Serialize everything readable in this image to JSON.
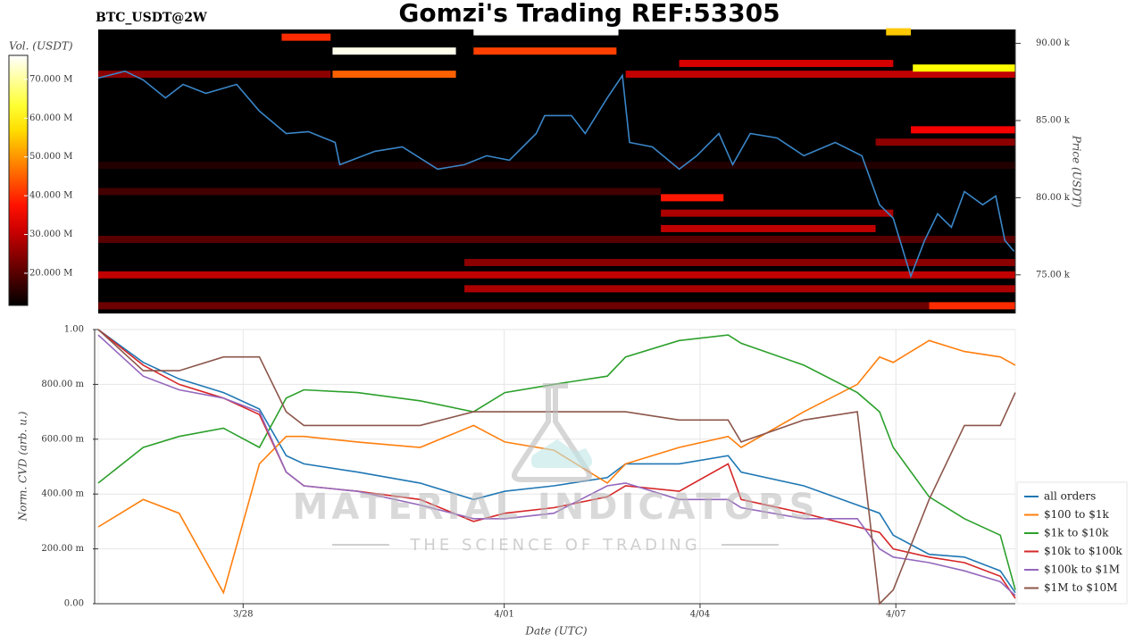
{
  "chart_data": [
    {
      "type": "heatmap",
      "title": "Gomzi's Trading REF:53305",
      "subtitle": "BTC_USDT@2W",
      "ylabel": "Price (USDT)",
      "colorbar_label": "Vol. (USDT)",
      "colormap": "hot",
      "xlim": [
        -2.22,
        11.83
      ],
      "ylim": [
        72500,
        90900
      ],
      "yticks": [
        {
          "value": 75000,
          "label": "75.00 k"
        },
        {
          "value": 80000,
          "label": "80.00 k"
        },
        {
          "value": 85000,
          "label": "85.00 k"
        },
        {
          "value": 90000,
          "label": "90.00 k"
        }
      ],
      "clim": [
        11700000,
        76200000
      ],
      "cticks": [
        {
          "value": 20000000,
          "label": "20.000 M"
        },
        {
          "value": 30000000,
          "label": "30.000 M"
        },
        {
          "value": 40000000,
          "label": "40.000 M"
        },
        {
          "value": 50000000,
          "label": "50.000 M"
        },
        {
          "value": 60000000,
          "label": "60.000 M"
        },
        {
          "value": 70000000,
          "label": "70.000 M"
        }
      ],
      "cells": [
        {
          "price": 82100,
          "x": [
            -2.22,
            11.83
          ],
          "volume": 15000000
        },
        {
          "price": 80400,
          "x": [
            -2.22,
            6.4
          ],
          "volume": 18000000
        },
        {
          "price": 77300,
          "x": [
            -2.22,
            11.83
          ],
          "volume": 20000000
        },
        {
          "price": 73000,
          "x": [
            -2.22,
            10.51
          ],
          "volume": 22000000
        },
        {
          "price": 88000,
          "x": [
            -2.22,
            1.34
          ],
          "volume": 25000000
        },
        {
          "price": 88000,
          "x": [
            5.86,
            11.83
          ],
          "volume": 30000000
        },
        {
          "price": 75800,
          "x": [
            3.39,
            11.83
          ],
          "volume": 25000000
        },
        {
          "price": 75000,
          "x": [
            -2.22,
            11.83
          ],
          "volume": 30000000
        },
        {
          "price": 74100,
          "x": [
            3.39,
            11.83
          ],
          "volume": 28000000
        },
        {
          "price": 83600,
          "x": [
            9.69,
            11.83
          ],
          "volume": 25000000
        },
        {
          "price": 79000,
          "x": [
            6.4,
            9.96
          ],
          "volume": 28000000
        },
        {
          "price": 78000,
          "x": [
            6.4,
            9.69
          ],
          "volume": 30000000
        },
        {
          "price": 88700,
          "x": [
            6.68,
            9.96
          ],
          "volume": 32000000
        },
        {
          "price": 84400,
          "x": [
            10.23,
            11.83
          ],
          "volume": 35000000
        },
        {
          "price": 80000,
          "x": [
            6.4,
            7.36
          ],
          "volume": 38000000
        },
        {
          "price": 73000,
          "x": [
            10.51,
            11.83
          ],
          "volume": 40000000
        },
        {
          "price": 90400,
          "x": [
            0.59,
            1.34
          ],
          "volume": 40000000
        },
        {
          "price": 89500,
          "x": [
            3.53,
            5.72
          ],
          "volume": 42000000
        },
        {
          "price": 88000,
          "x": [
            1.37,
            3.26
          ],
          "volume": 45000000
        },
        {
          "price": 90750,
          "x": [
            9.85,
            10.23
          ],
          "volume": 55000000
        },
        {
          "price": 88400,
          "x": [
            10.26,
            11.83
          ],
          "volume": 60000000
        },
        {
          "price": 89500,
          "x": [
            1.37,
            3.26
          ],
          "volume": 75000000
        },
        {
          "price": 90750,
          "x": [
            3.53,
            5.75
          ],
          "volume": 76000000
        }
      ],
      "price_line": {
        "color": "#3a86c8",
        "x": [
          -2.22,
          -1.81,
          -1.53,
          -1.19,
          -0.92,
          -0.57,
          -0.1,
          0.25,
          0.66,
          1.0,
          1.41,
          1.48,
          2.02,
          2.44,
          2.98,
          3.39,
          3.73,
          4.08,
          4.49,
          4.62,
          5.03,
          5.24,
          5.58,
          5.81,
          5.92,
          6.27,
          6.68,
          6.95,
          7.29,
          7.5,
          7.77,
          8.18,
          8.59,
          9.07,
          9.48,
          9.75,
          9.96,
          10.23,
          10.44,
          10.64,
          10.85,
          11.05,
          11.33,
          11.53,
          11.67,
          11.81
        ],
        "values": [
          87750,
          88200,
          87630,
          86470,
          87340,
          86760,
          87340,
          85610,
          84160,
          84280,
          83580,
          82140,
          83010,
          83290,
          81850,
          82140,
          82720,
          82430,
          84160,
          85320,
          85320,
          84160,
          86470,
          87920,
          83580,
          83290,
          81850,
          82720,
          84160,
          82140,
          84160,
          83870,
          82720,
          83580,
          82720,
          79540,
          78670,
          74910,
          77230,
          78960,
          78090,
          80400,
          79540,
          80110,
          77230,
          76530
        ]
      }
    },
    {
      "type": "line",
      "xlabel": "Date (UTC)",
      "ylabel": "Norm. CVD (arb. u.)",
      "grid": true,
      "legend": "right",
      "xlim": [
        -2.22,
        11.83
      ],
      "xticks": [
        {
          "value": 0,
          "label": "3/28"
        },
        {
          "value": 4,
          "label": "4/01"
        },
        {
          "value": 7,
          "label": "4/04"
        },
        {
          "value": 10,
          "label": "4/07"
        }
      ],
      "ylim": [
        0,
        1
      ],
      "yticks": [
        {
          "value": 0,
          "label": "0.00"
        },
        {
          "value": 0.2,
          "label": "200.00 m"
        },
        {
          "value": 0.4,
          "label": "400.00 m"
        },
        {
          "value": 0.6,
          "label": "600.00 m"
        },
        {
          "value": 0.8,
          "label": "800.00 m"
        },
        {
          "value": 1,
          "label": "1.00"
        }
      ],
      "x": [
        -2.22,
        -1.53,
        -0.98,
        -0.3,
        0.25,
        0.66,
        0.93,
        1.75,
        2.71,
        3.53,
        4.01,
        4.76,
        5.58,
        5.86,
        6.68,
        7.43,
        7.63,
        8.59,
        9.41,
        9.75,
        9.96,
        10.51,
        11.05,
        11.6,
        11.83
      ],
      "series": [
        {
          "name": "all orders",
          "color": "#1f77b4",
          "values": [
            1.0,
            0.88,
            0.82,
            0.77,
            0.71,
            0.54,
            0.51,
            0.48,
            0.44,
            0.38,
            0.41,
            0.43,
            0.46,
            0.51,
            0.51,
            0.54,
            0.48,
            0.43,
            0.36,
            0.33,
            0.25,
            0.18,
            0.17,
            0.12,
            0.04
          ]
        },
        {
          "name": "$100 to $1k",
          "color": "#ff7f0e",
          "values": [
            0.28,
            0.38,
            0.33,
            0.04,
            0.51,
            0.61,
            0.61,
            0.59,
            0.57,
            0.65,
            0.59,
            0.56,
            0.44,
            0.51,
            0.57,
            0.61,
            0.57,
            0.7,
            0.8,
            0.9,
            0.88,
            0.96,
            0.92,
            0.9,
            0.87
          ]
        },
        {
          "name": "$1k to $10k",
          "color": "#2ca02c",
          "values": [
            0.44,
            0.57,
            0.61,
            0.64,
            0.57,
            0.75,
            0.78,
            0.77,
            0.74,
            0.7,
            0.77,
            0.8,
            0.83,
            0.9,
            0.96,
            0.98,
            0.95,
            0.87,
            0.77,
            0.7,
            0.57,
            0.39,
            0.31,
            0.25,
            0.05
          ]
        },
        {
          "name": "$10k to $100k",
          "color": "#d62728",
          "values": [
            1.0,
            0.87,
            0.8,
            0.75,
            0.69,
            0.48,
            0.43,
            0.41,
            0.38,
            0.3,
            0.33,
            0.35,
            0.39,
            0.43,
            0.41,
            0.51,
            0.38,
            0.33,
            0.28,
            0.26,
            0.2,
            0.17,
            0.15,
            0.1,
            0.02
          ]
        },
        {
          "name": "$100k to $1M",
          "color": "#9467bd",
          "values": [
            0.98,
            0.83,
            0.78,
            0.75,
            0.7,
            0.48,
            0.43,
            0.41,
            0.36,
            0.31,
            0.31,
            0.33,
            0.43,
            0.44,
            0.38,
            0.38,
            0.35,
            0.31,
            0.31,
            0.2,
            0.17,
            0.15,
            0.12,
            0.08,
            0.03
          ]
        },
        {
          "name": "$1M to $10M",
          "color": "#8c564b",
          "values": [
            1.0,
            0.85,
            0.85,
            0.9,
            0.9,
            0.7,
            0.65,
            0.65,
            0.65,
            0.7,
            0.7,
            0.7,
            0.7,
            0.7,
            0.67,
            0.67,
            0.59,
            0.67,
            0.7,
            0.0,
            0.05,
            0.38,
            0.65,
            0.65,
            0.77
          ]
        }
      ]
    }
  ],
  "watermark": {
    "title": "MATERIAL INDICATORS",
    "subtitle": "THE SCIENCE OF TRADING"
  }
}
